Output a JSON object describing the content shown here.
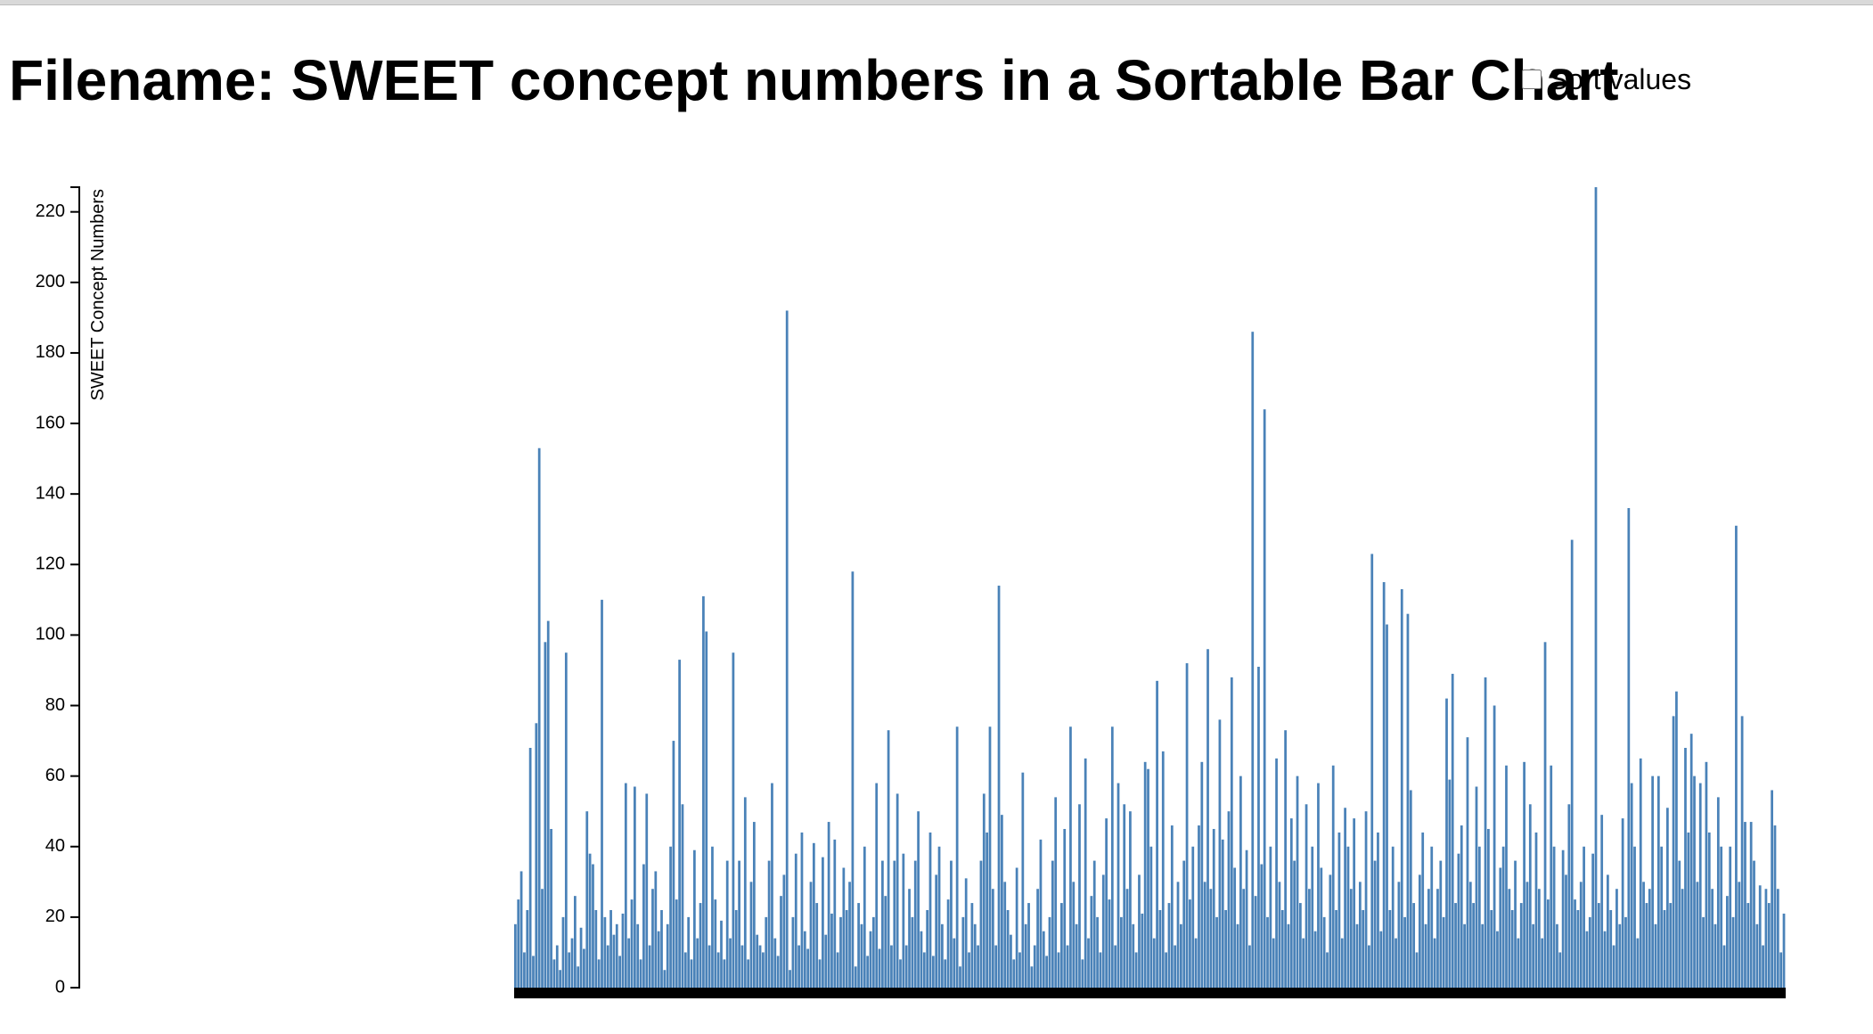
{
  "page": {
    "title": "Filename: SWEET concept numbers in a Sortable Bar Chart",
    "sort_label": "Sort values",
    "sort_checked": false
  },
  "chart_data": {
    "type": "bar",
    "title": "Filename: SWEET concept numbers in a Sortable Bar Chart",
    "xlabel": "",
    "ylabel": "SWEET Concept Numbers",
    "ylim": [
      0,
      227
    ],
    "yticks": [
      0,
      20,
      40,
      60,
      80,
      100,
      120,
      140,
      160,
      180,
      200,
      220
    ],
    "bar_color": "#4a82b8",
    "x_axis_color": "#000000",
    "grid": false,
    "legend": "none",
    "values": [
      18,
      25,
      33,
      10,
      22,
      68,
      9,
      75,
      153,
      28,
      98,
      104,
      45,
      8,
      12,
      5,
      20,
      95,
      10,
      14,
      26,
      6,
      17,
      11,
      50,
      38,
      35,
      22,
      8,
      110,
      20,
      12,
      22,
      15,
      18,
      9,
      21,
      58,
      14,
      25,
      57,
      18,
      8,
      35,
      55,
      12,
      28,
      33,
      16,
      22,
      5,
      18,
      40,
      70,
      25,
      93,
      52,
      10,
      20,
      8,
      39,
      14,
      24,
      111,
      101,
      12,
      40,
      25,
      10,
      19,
      8,
      36,
      14,
      95,
      22,
      36,
      12,
      54,
      8,
      30,
      47,
      15,
      12,
      10,
      20,
      36,
      58,
      14,
      9,
      26,
      32,
      192,
      5,
      20,
      38,
      12,
      44,
      16,
      11,
      30,
      41,
      24,
      8,
      37,
      15,
      47,
      21,
      42,
      10,
      20,
      34,
      22,
      30,
      118,
      6,
      24,
      18,
      40,
      9,
      16,
      20,
      58,
      11,
      36,
      26,
      73,
      12,
      36,
      55,
      8,
      38,
      12,
      28,
      20,
      36,
      50,
      16,
      10,
      22,
      44,
      9,
      32,
      40,
      18,
      8,
      25,
      36,
      14,
      74,
      6,
      20,
      31,
      10,
      24,
      18,
      12,
      36,
      55,
      44,
      74,
      28,
      12,
      114,
      49,
      30,
      22,
      15,
      8,
      34,
      10,
      61,
      18,
      24,
      6,
      12,
      28,
      42,
      16,
      9,
      20,
      36,
      54,
      10,
      24,
      45,
      12,
      74,
      30,
      18,
      52,
      8,
      65,
      14,
      26,
      36,
      20,
      10,
      32,
      48,
      25,
      74,
      12,
      58,
      20,
      52,
      28,
      50,
      18,
      10,
      32,
      21,
      64,
      62,
      40,
      14,
      87,
      22,
      67,
      10,
      24,
      46,
      12,
      30,
      18,
      36,
      92,
      25,
      40,
      14,
      46,
      64,
      30,
      96,
      28,
      45,
      20,
      76,
      42,
      22,
      50,
      88,
      34,
      18,
      60,
      28,
      39,
      12,
      186,
      26,
      91,
      35,
      164,
      20,
      40,
      14,
      65,
      30,
      22,
      73,
      18,
      48,
      36,
      60,
      24,
      14,
      52,
      28,
      40,
      16,
      58,
      34,
      20,
      10,
      32,
      63,
      22,
      44,
      14,
      51,
      40,
      28,
      48,
      18,
      30,
      22,
      50,
      12,
      123,
      36,
      44,
      16,
      115,
      103,
      22,
      40,
      14,
      30,
      113,
      20,
      106,
      56,
      24,
      10,
      32,
      44,
      18,
      28,
      40,
      14,
      28,
      36,
      20,
      82,
      59,
      89,
      24,
      38,
      46,
      18,
      71,
      30,
      24,
      57,
      40,
      18,
      88,
      45,
      22,
      80,
      16,
      34,
      40,
      63,
      28,
      22,
      36,
      14,
      24,
      64,
      30,
      52,
      18,
      44,
      28,
      14,
      98,
      25,
      63,
      40,
      18,
      10,
      39,
      32,
      52,
      127,
      25,
      22,
      30,
      40,
      16,
      20,
      38,
      227,
      24,
      49,
      16,
      32,
      22,
      12,
      28,
      18,
      48,
      20,
      136,
      58,
      40,
      14,
      65,
      30,
      24,
      28,
      60,
      18,
      60,
      40,
      22,
      51,
      24,
      77,
      84,
      36,
      28,
      68,
      44,
      72,
      60,
      30,
      58,
      20,
      64,
      44,
      28,
      18,
      54,
      40,
      12,
      26,
      40,
      20,
      131,
      30,
      77,
      47,
      24,
      47,
      36,
      18,
      29,
      12,
      28,
      24,
      56,
      46,
      28,
      10,
      21
    ]
  }
}
